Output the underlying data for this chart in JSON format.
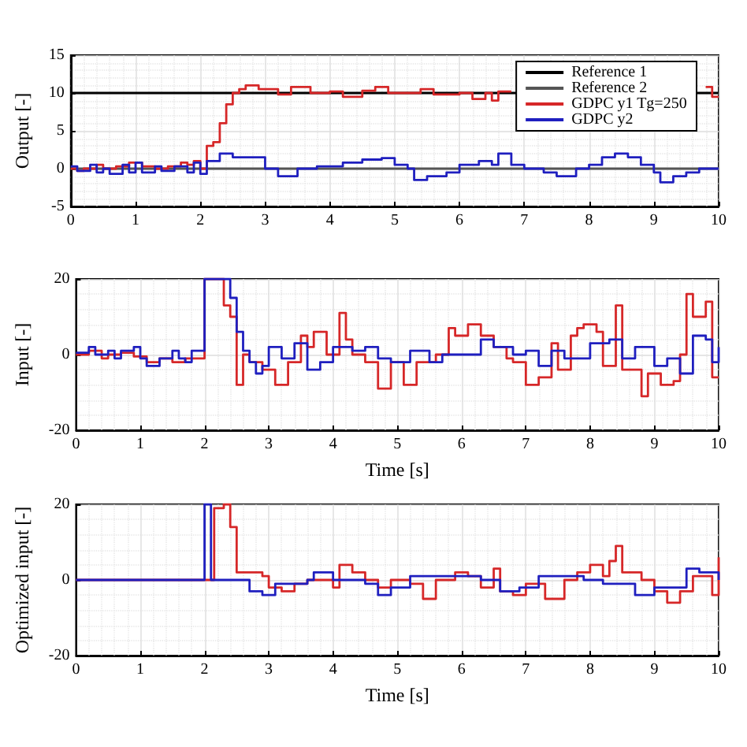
{
  "chart_data": [
    {
      "type": "step",
      "ylabel": "Output [-]",
      "xlim": [
        0,
        10
      ],
      "xticks": [
        0,
        1,
        2,
        3,
        4,
        5,
        6,
        7,
        8,
        9,
        10
      ],
      "ylim": [
        -5,
        15
      ],
      "yticks": [
        -5,
        0,
        5,
        10,
        15
      ],
      "grid": true,
      "legend": "top right",
      "marker": "none",
      "series": [
        {
          "name": "Reference 1",
          "type": "line",
          "color": "#000000",
          "x": [
            0,
            10
          ],
          "values": [
            10,
            10
          ]
        },
        {
          "name": "Reference 2",
          "type": "line",
          "color": "#555555",
          "x": [
            0,
            10
          ],
          "values": [
            0,
            0
          ]
        },
        {
          "name": "GDPC y1 Tg=250",
          "color": "#d62728",
          "x": [
            0,
            0.1,
            0.2,
            0.4,
            0.5,
            0.7,
            0.9,
            1.1,
            1.3,
            1.5,
            1.7,
            1.8,
            1.9,
            2.0,
            2.1,
            2.2,
            2.3,
            2.4,
            2.5,
            2.6,
            2.7,
            2.9,
            3.2,
            3.4,
            3.7,
            4.0,
            4.2,
            4.5,
            4.7,
            4.9,
            5.2,
            5.4,
            5.6,
            6.0,
            6.2,
            6.4,
            6.5,
            6.6,
            6.8,
            9.8,
            9.9,
            10
          ],
          "values": [
            0,
            -0.3,
            0,
            0.5,
            0,
            0.3,
            0.8,
            0.3,
            0,
            0.3,
            0.8,
            0.5,
            1,
            0,
            3,
            3.5,
            6,
            8.5,
            10,
            10.5,
            11,
            10.5,
            9.8,
            10.8,
            10,
            10.2,
            9.5,
            10.3,
            10.8,
            10,
            10,
            10.5,
            9.8,
            10,
            9.2,
            10,
            9,
            10.2,
            null,
            10.8,
            9.5,
            9.5
          ]
        },
        {
          "name": "GDPC y2",
          "color": "#1f1fbf",
          "x": [
            0,
            0.1,
            0.3,
            0.4,
            0.5,
            0.6,
            0.8,
            0.9,
            1.0,
            1.1,
            1.3,
            1.4,
            1.6,
            1.8,
            1.9,
            2.0,
            2.1,
            2.3,
            2.5,
            2.7,
            3.0,
            3.2,
            3.5,
            3.8,
            4.2,
            4.5,
            4.8,
            5.0,
            5.2,
            5.3,
            5.5,
            5.8,
            6.0,
            6.3,
            6.5,
            6.6,
            6.8,
            7.0,
            7.3,
            7.5,
            7.8,
            8.0,
            8.2,
            8.4,
            8.6,
            8.8,
            9.0,
            9.1,
            9.3,
            9.5,
            9.7,
            10
          ],
          "values": [
            0.3,
            -0.3,
            0.5,
            -0.5,
            0,
            -0.7,
            0.5,
            -0.5,
            0.8,
            -0.5,
            0.3,
            -0.3,
            0.3,
            -0.5,
            0.8,
            -0.7,
            1,
            2,
            1.5,
            1.5,
            0,
            -1,
            0,
            0.3,
            0.8,
            1.2,
            1.4,
            0.5,
            0,
            -1.5,
            -1,
            -0.5,
            0.5,
            1,
            0.5,
            2,
            0.5,
            0,
            -0.5,
            -1,
            0,
            0.5,
            1.5,
            2,
            1.5,
            0.5,
            -0.5,
            -1.8,
            -1,
            -0.5,
            0,
            0
          ]
        }
      ]
    },
    {
      "type": "step",
      "ylabel": "Input [-]",
      "xlabel": "Time [s]",
      "xlim": [
        0,
        10
      ],
      "xticks": [
        0,
        1,
        2,
        3,
        4,
        5,
        6,
        7,
        8,
        9,
        10
      ],
      "ylim": [
        -20,
        20
      ],
      "yticks": [
        -20,
        0,
        20
      ],
      "grid": true,
      "marker": "none",
      "series": [
        {
          "color": "#d62728",
          "x": [
            0,
            0.2,
            0.4,
            0.5,
            0.7,
            0.9,
            1.1,
            1.3,
            1.5,
            1.7,
            1.9,
            2.0,
            2.3,
            2.4,
            2.5,
            2.6,
            2.7,
            2.9,
            3.1,
            3.3,
            3.5,
            3.6,
            3.7,
            3.9,
            4.1,
            4.2,
            4.3,
            4.5,
            4.7,
            4.9,
            5.1,
            5.3,
            5.6,
            5.8,
            5.9,
            6.1,
            6.3,
            6.5,
            6.7,
            6.8,
            7.0,
            7.2,
            7.4,
            7.5,
            7.7,
            7.8,
            7.9,
            8.1,
            8.2,
            8.4,
            8.5,
            8.8,
            8.9,
            9.1,
            9.3,
            9.4,
            9.5,
            9.6,
            9.8,
            9.9,
            10
          ],
          "values": [
            0,
            1,
            -1,
            0,
            0.5,
            -0.5,
            -2,
            -1,
            -2,
            -1,
            -1,
            20,
            13,
            10,
            -8,
            0,
            -2,
            -4,
            -8,
            -2,
            5,
            2,
            6,
            0,
            11,
            4,
            0,
            -2,
            -9,
            -2,
            -8,
            -2,
            0,
            7,
            5,
            8,
            5,
            2,
            -1,
            -2,
            -8,
            -6,
            3,
            -4,
            5,
            7,
            8,
            6,
            -3,
            13,
            -4,
            -11,
            -5,
            -8,
            -7,
            0,
            16,
            10,
            14,
            -6,
            -6
          ]
        },
        {
          "color": "#1f1fbf",
          "x": [
            0,
            0.2,
            0.3,
            0.5,
            0.6,
            0.7,
            0.9,
            1.0,
            1.1,
            1.3,
            1.5,
            1.6,
            1.7,
            1.8,
            2.0,
            2.4,
            2.5,
            2.6,
            2.7,
            2.8,
            2.9,
            3.0,
            3.2,
            3.4,
            3.6,
            3.8,
            4.0,
            4.3,
            4.5,
            4.7,
            4.9,
            5.2,
            5.5,
            5.7,
            6.0,
            6.3,
            6.5,
            6.8,
            7.0,
            7.2,
            7.4,
            7.6,
            7.8,
            8.0,
            8.3,
            8.5,
            8.7,
            9.0,
            9.2,
            9.4,
            9.6,
            9.8,
            9.9,
            10
          ],
          "values": [
            0.5,
            2,
            0,
            1,
            -1,
            1,
            2,
            -1,
            -3,
            -1,
            1,
            -1,
            -2,
            1,
            20,
            15,
            6,
            1,
            -2,
            -5,
            -3,
            2,
            -1,
            3,
            -4,
            -2,
            2,
            1,
            2,
            -1,
            -2,
            1,
            -2,
            0,
            0,
            4,
            2,
            0,
            1,
            -3,
            1,
            -1,
            -1,
            3,
            4,
            -1,
            2,
            -3,
            -1,
            -5,
            5,
            4,
            -2,
            2
          ]
        }
      ]
    },
    {
      "type": "step",
      "ylabel": "Optimized input [-]",
      "xlabel": "Time [s]",
      "xlim": [
        0,
        10
      ],
      "xticks": [
        0,
        1,
        2,
        3,
        4,
        5,
        6,
        7,
        8,
        9,
        10
      ],
      "ylim": [
        -20,
        20
      ],
      "yticks": [
        -20,
        0,
        20
      ],
      "grid": true,
      "marker": "none",
      "series": [
        {
          "color": "#d62728",
          "x": [
            0,
            2.15,
            2.3,
            2.4,
            2.5,
            2.7,
            2.9,
            3.0,
            3.2,
            3.4,
            3.6,
            3.8,
            4.0,
            4.1,
            4.3,
            4.5,
            4.7,
            4.9,
            5.2,
            5.4,
            5.6,
            5.9,
            6.1,
            6.3,
            6.5,
            6.6,
            6.8,
            7.0,
            7.3,
            7.6,
            7.8,
            8.0,
            8.2,
            8.3,
            8.4,
            8.5,
            8.8,
            9.0,
            9.2,
            9.4,
            9.6,
            9.9,
            10
          ],
          "values": [
            0,
            19,
            20,
            14,
            2,
            2,
            1,
            -2,
            -3,
            -1,
            0,
            0,
            -2,
            4,
            2,
            0,
            -2,
            0,
            -1,
            -5,
            0,
            2,
            1,
            -2,
            3,
            -3,
            -4,
            -1,
            -5,
            0,
            2,
            4,
            1,
            5,
            9,
            2,
            0,
            -3,
            -6,
            -3,
            1,
            -4,
            6
          ]
        },
        {
          "color": "#1f1fbf",
          "x": [
            0,
            2.0,
            2.1,
            2.7,
            2.9,
            3.1,
            3.6,
            3.7,
            4.0,
            4.5,
            4.7,
            4.9,
            5.2,
            5.6,
            6.0,
            6.3,
            6.6,
            6.9,
            7.2,
            7.5,
            7.9,
            8.2,
            8.4,
            8.7,
            9.0,
            9.3,
            9.5,
            9.7,
            10
          ],
          "values": [
            0,
            20,
            0,
            -3,
            -4,
            -1,
            0,
            2,
            0,
            -1,
            -4,
            -2,
            1,
            1,
            1,
            0,
            -3,
            -2,
            1,
            1,
            0,
            -1,
            -1,
            -4,
            -2,
            -2,
            3,
            2,
            0
          ]
        }
      ]
    }
  ]
}
